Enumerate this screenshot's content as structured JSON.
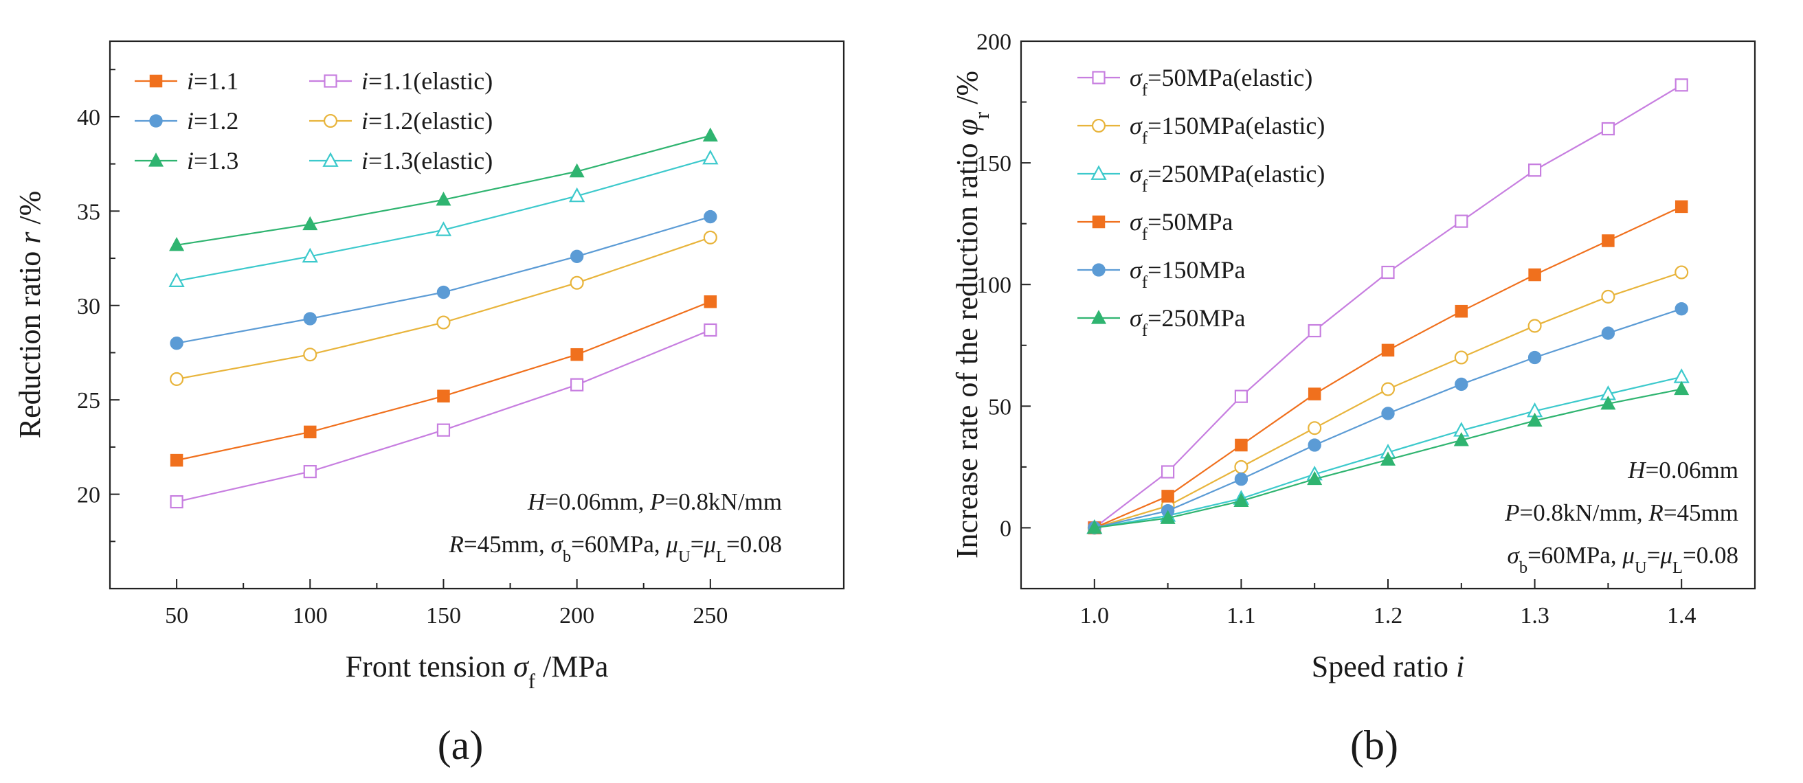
{
  "panels": [
    {
      "id": "a",
      "panel_label": "(a)",
      "annotations": [
        "H=0.06mm, P=0.8kN/mm",
        "R=45mm, σb=60MPa, μU=μL=0.08"
      ],
      "legend_columns": 2
    },
    {
      "id": "b",
      "panel_label": "(b)",
      "annotations": [
        "H=0.06mm",
        "P=0.8kN/mm, R=45mm",
        "σb=60MPa, μU=μL=0.08"
      ],
      "legend_columns": 1
    }
  ],
  "colors": {
    "orange": "#F0701D",
    "blue": "#5B9BD5",
    "green": "#2FB470",
    "violet": "#C77EE0",
    "gold": "#E8B43B",
    "cyan": "#3CC9CC"
  },
  "chart_data": [
    {
      "type": "line",
      "title": "",
      "xlabel": "Front tension σf /MPa",
      "ylabel": "Reduction ratio r /%",
      "xlim": [
        25,
        300
      ],
      "ylim": [
        15,
        44
      ],
      "xticks": [
        50,
        100,
        150,
        200,
        250
      ],
      "yticks": [
        20,
        25,
        30,
        35,
        40
      ],
      "x": [
        50,
        100,
        150,
        200,
        250
      ],
      "legend_position": "top-left",
      "series": [
        {
          "name": "i=1.1",
          "color": "#F0701D",
          "marker": "square",
          "filled": true,
          "values": [
            21.8,
            23.3,
            25.2,
            27.4,
            30.2
          ]
        },
        {
          "name": "i=1.1(elastic)",
          "color": "#C77EE0",
          "marker": "square",
          "filled": false,
          "values": [
            19.6,
            21.2,
            23.4,
            25.8,
            28.7
          ]
        },
        {
          "name": "i=1.2",
          "color": "#5B9BD5",
          "marker": "circle",
          "filled": true,
          "values": [
            28.0,
            29.3,
            30.7,
            32.6,
            34.7
          ]
        },
        {
          "name": "i=1.2(elastic)",
          "color": "#E8B43B",
          "marker": "circle",
          "filled": false,
          "values": [
            26.1,
            27.4,
            29.1,
            31.2,
            33.6
          ]
        },
        {
          "name": "i=1.3",
          "color": "#2FB470",
          "marker": "triangle",
          "filled": true,
          "values": [
            33.2,
            34.3,
            35.6,
            37.1,
            39.0
          ]
        },
        {
          "name": "i=1.3(elastic)",
          "color": "#3CC9CC",
          "marker": "triangle",
          "filled": false,
          "values": [
            31.3,
            32.6,
            34.0,
            35.8,
            37.8
          ]
        }
      ]
    },
    {
      "type": "line",
      "title": "",
      "xlabel": "Speed ratio i",
      "ylabel": "Increase rate of the reduction ratio φr /%",
      "xlim": [
        0.95,
        1.45
      ],
      "ylim": [
        -25,
        200
      ],
      "xticks": [
        1.0,
        1.1,
        1.2,
        1.3,
        1.4
      ],
      "yticks": [
        0,
        50,
        100,
        150,
        200
      ],
      "x": [
        1.0,
        1.05,
        1.1,
        1.15,
        1.2,
        1.25,
        1.3,
        1.35,
        1.4
      ],
      "legend_position": "top-left",
      "series": [
        {
          "name": "σf=50MPa(elastic)",
          "color": "#C77EE0",
          "marker": "square",
          "filled": false,
          "values": [
            0,
            23,
            54,
            81,
            105,
            126,
            147,
            164,
            182
          ]
        },
        {
          "name": "σf=150MPa(elastic)",
          "color": "#E8B43B",
          "marker": "circle",
          "filled": false,
          "values": [
            0,
            9,
            25,
            41,
            57,
            70,
            83,
            95,
            105
          ]
        },
        {
          "name": "σf=250MPa(elastic)",
          "color": "#3CC9CC",
          "marker": "triangle",
          "filled": false,
          "values": [
            0,
            5,
            12,
            22,
            31,
            40,
            48,
            55,
            62
          ]
        },
        {
          "name": "σf=50MPa",
          "color": "#F0701D",
          "marker": "square",
          "filled": true,
          "values": [
            0,
            13,
            34,
            55,
            73,
            89,
            104,
            118,
            132
          ]
        },
        {
          "name": "σf=150MPa",
          "color": "#5B9BD5",
          "marker": "circle",
          "filled": true,
          "values": [
            0,
            7,
            20,
            34,
            47,
            59,
            70,
            80,
            90
          ]
        },
        {
          "name": "σf=250MPa",
          "color": "#2FB470",
          "marker": "triangle",
          "filled": true,
          "values": [
            0,
            4,
            11,
            20,
            28,
            36,
            44,
            51,
            57
          ]
        }
      ]
    }
  ]
}
